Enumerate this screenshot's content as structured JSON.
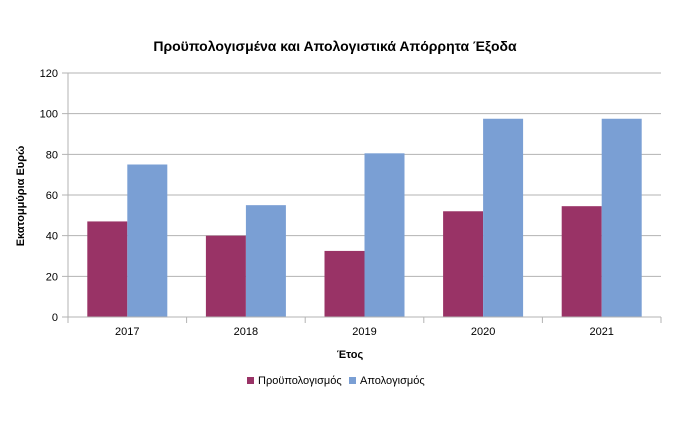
{
  "chart_data": {
    "type": "bar",
    "title": "Προϋπολογισμένα και Απολογιστικά Απόρρητα Έξοδα",
    "xlabel": "Έτος",
    "ylabel": "Εκατομμύρια Ευρώ",
    "categories": [
      "2017",
      "2018",
      "2019",
      "2020",
      "2021"
    ],
    "series": [
      {
        "name": "Προϋπολογισμός",
        "values": [
          47,
          40,
          32.5,
          52,
          54.5
        ],
        "color": "#993366"
      },
      {
        "name": "Απολογισμός",
        "values": [
          75,
          55,
          80.5,
          97.5,
          97.5
        ],
        "color": "#7a9fd4"
      }
    ],
    "ylim": [
      0,
      120
    ],
    "yticks": [
      0,
      20,
      40,
      60,
      80,
      100,
      120
    ],
    "grid": true,
    "legend_position": "bottom"
  }
}
